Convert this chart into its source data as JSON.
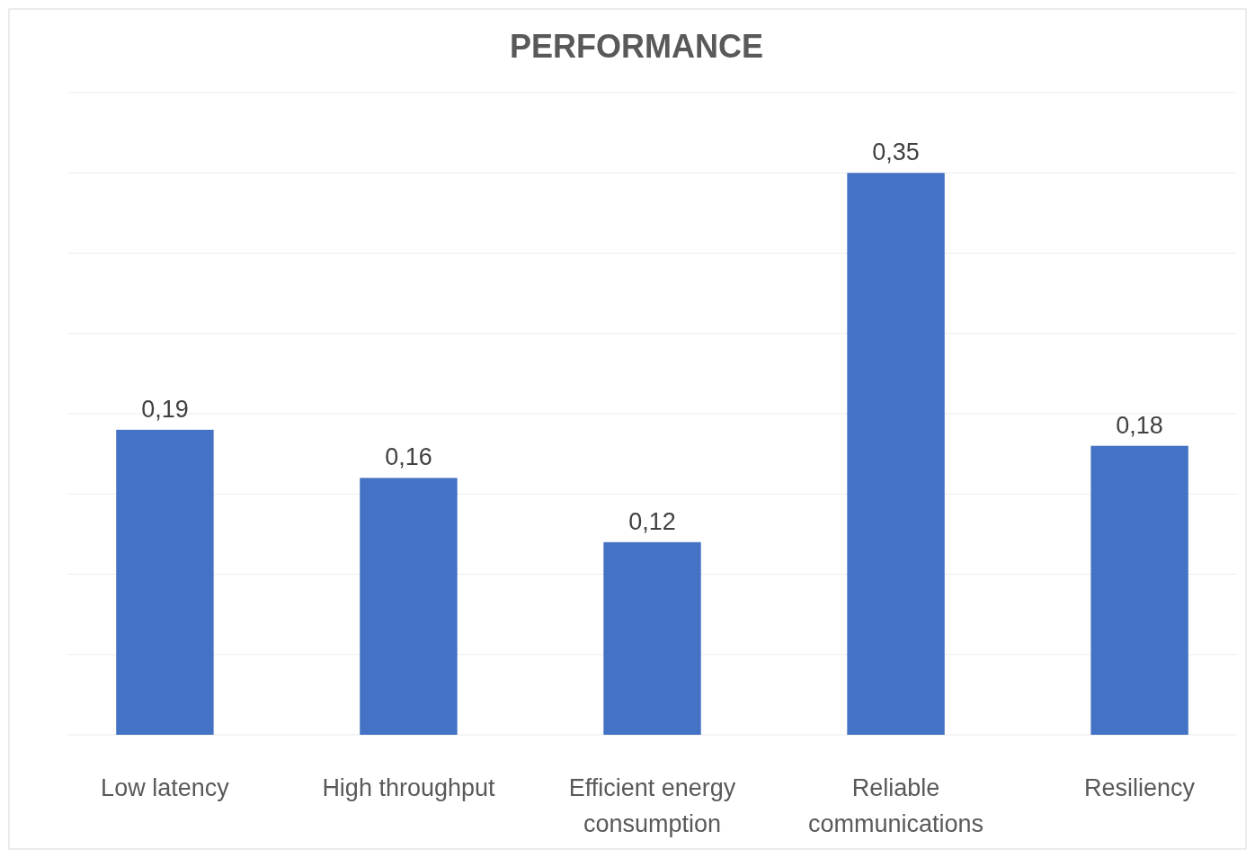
{
  "chart_data": {
    "type": "bar",
    "title": "PERFORMANCE",
    "categories": [
      "Low latency",
      "High throughput",
      "Efficient energy consumption",
      "Reliable communications",
      "Resiliency"
    ],
    "values": [
      0.19,
      0.16,
      0.12,
      0.35,
      0.18
    ],
    "value_labels": [
      "0,19",
      "0,16",
      "0,12",
      "0,35",
      "0,18"
    ],
    "color": "#4472c4",
    "ylim": [
      0,
      0.4
    ],
    "yticks": [
      {
        "value": 0,
        "label": null
      },
      {
        "value": 0.05,
        "label": null
      },
      {
        "value": 0.1,
        "label": null
      },
      {
        "value": 0.15,
        "label": null
      },
      {
        "value": 0.2,
        "label": null
      },
      {
        "value": 0.25,
        "label": null
      },
      {
        "value": 0.3,
        "label": null
      },
      {
        "value": 0.35,
        "label": null
      },
      {
        "value": 0.4,
        "label": null
      }
    ],
    "grid": "y"
  }
}
